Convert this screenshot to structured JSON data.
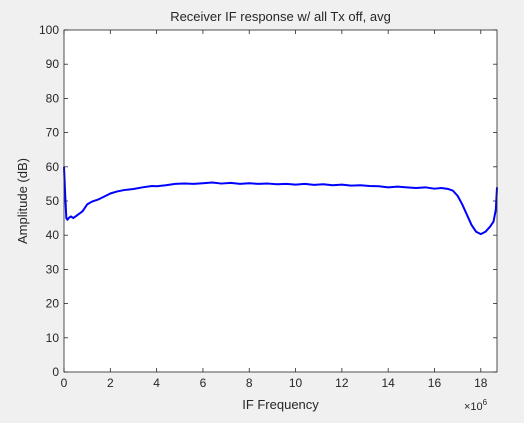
{
  "chart_data": {
    "type": "line",
    "title": "Receiver IF response w/ all Tx off, avg",
    "xlabel": "IF Frequency",
    "ylabel": "Amplitude (dB)",
    "x_exponent_label": "×10",
    "x_exponent_power": "6",
    "xlim": [
      0,
      18.7
    ],
    "ylim": [
      0,
      100
    ],
    "x_ticks": [
      0,
      2,
      4,
      6,
      8,
      10,
      12,
      14,
      16,
      18
    ],
    "x_tick_labels": [
      "0",
      "2",
      "4",
      "6",
      "8",
      "10",
      "12",
      "14",
      "16",
      "18"
    ],
    "y_ticks": [
      0,
      10,
      20,
      30,
      40,
      50,
      60,
      70,
      80,
      90,
      100
    ],
    "y_tick_labels": [
      "0",
      "10",
      "20",
      "30",
      "40",
      "50",
      "60",
      "70",
      "80",
      "90",
      "100"
    ],
    "grid": false,
    "line_color": "#0000ff",
    "series": [
      {
        "x": [
          0,
          0.05,
          0.1,
          0.15,
          0.2,
          0.3,
          0.4,
          0.5,
          0.6,
          0.8,
          1.0,
          1.2,
          1.5,
          1.8,
          2.0,
          2.3,
          2.6,
          3.0,
          3.4,
          3.8,
          4.0,
          4.4,
          4.8,
          5.2,
          5.6,
          6.0,
          6.4,
          6.8,
          7.2,
          7.6,
          8.0,
          8.4,
          8.8,
          9.2,
          9.6,
          10.0,
          10.4,
          10.8,
          11.2,
          11.6,
          12.0,
          12.4,
          12.8,
          13.2,
          13.6,
          14.0,
          14.4,
          14.8,
          15.2,
          15.6,
          16.0,
          16.3,
          16.6,
          16.8,
          17.0,
          17.2,
          17.4,
          17.6,
          17.8,
          18.0,
          18.2,
          18.4,
          18.55,
          18.65,
          18.7
        ],
        "y": [
          60,
          52,
          45,
          44.5,
          45,
          45.5,
          45,
          45.5,
          46,
          47,
          49,
          49.8,
          50.5,
          51.5,
          52.2,
          52.8,
          53.2,
          53.5,
          54,
          54.4,
          54.3,
          54.6,
          55,
          55.1,
          55,
          55.2,
          55.4,
          55.1,
          55.3,
          55,
          55.2,
          55,
          55.1,
          54.9,
          55,
          54.8,
          55,
          54.7,
          54.9,
          54.6,
          54.8,
          54.5,
          54.6,
          54.4,
          54.3,
          54,
          54.2,
          54,
          53.8,
          54,
          53.6,
          53.8,
          53.5,
          53,
          51.5,
          49,
          46,
          43,
          41,
          40.3,
          41,
          42.5,
          44,
          47.5,
          54
        ]
      }
    ]
  }
}
